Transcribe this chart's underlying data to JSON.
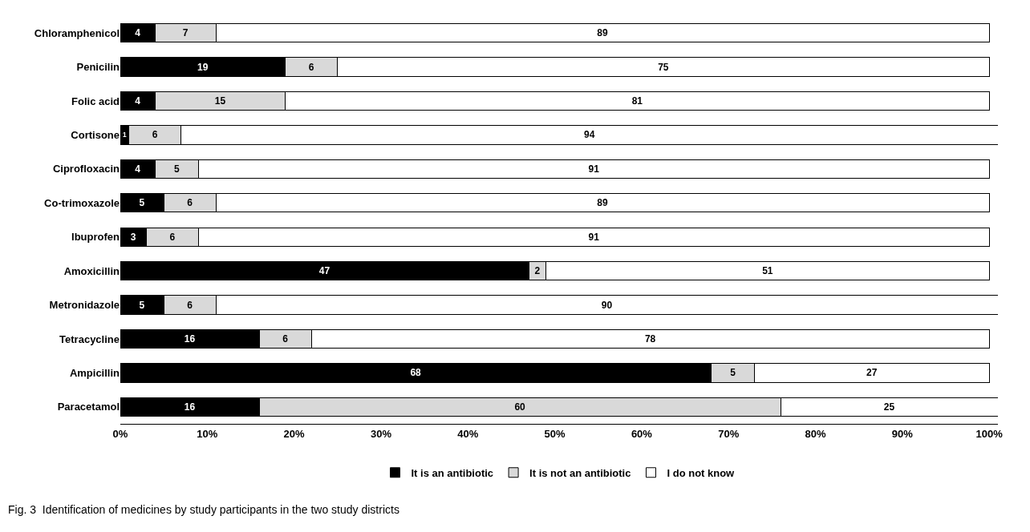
{
  "chart_data": {
    "type": "bar",
    "orientation": "horizontal",
    "stacked": true,
    "data_labels": true,
    "categories": [
      "Chloramphenicol",
      "Penicilin",
      "Folic acid",
      "Cortisone",
      "Ciprofloxacin",
      "Co-trimoxazole",
      "Ibuprofen",
      "Amoxicillin",
      "Metronidazole",
      "Tetracycline",
      "Ampicillin",
      "Paracetamol"
    ],
    "series": [
      {
        "name": "It is an antibiotic",
        "color": "#000000",
        "values": [
          4,
          19,
          4,
          1,
          4,
          5,
          3,
          47,
          5,
          16,
          68,
          16
        ]
      },
      {
        "name": "It is not an antibiotic",
        "color": "#d9d9d9",
        "values": [
          7,
          6,
          15,
          6,
          5,
          6,
          6,
          2,
          6,
          6,
          5,
          60
        ]
      },
      {
        "name": "I do not know",
        "color": "#ffffff",
        "values": [
          89,
          75,
          81,
          94,
          91,
          89,
          91,
          51,
          90,
          78,
          27,
          25
        ]
      }
    ],
    "xlim": [
      0,
      101
    ],
    "xticks": [
      {
        "value": 0,
        "label": "0%"
      },
      {
        "value": 10,
        "label": "10%"
      },
      {
        "value": 20,
        "label": "20%"
      },
      {
        "value": 30,
        "label": "30%"
      },
      {
        "value": 40,
        "label": "40%"
      },
      {
        "value": 50,
        "label": "50%"
      },
      {
        "value": 60,
        "label": "60%"
      },
      {
        "value": 70,
        "label": "70%"
      },
      {
        "value": 80,
        "label": "80%"
      },
      {
        "value": 90,
        "label": "90%"
      },
      {
        "value": 100,
        "label": "100%"
      }
    ],
    "legend": "bottom",
    "annotations": [
      "Fig. 3  Identification of medicines by study participants in the two study districts"
    ]
  }
}
